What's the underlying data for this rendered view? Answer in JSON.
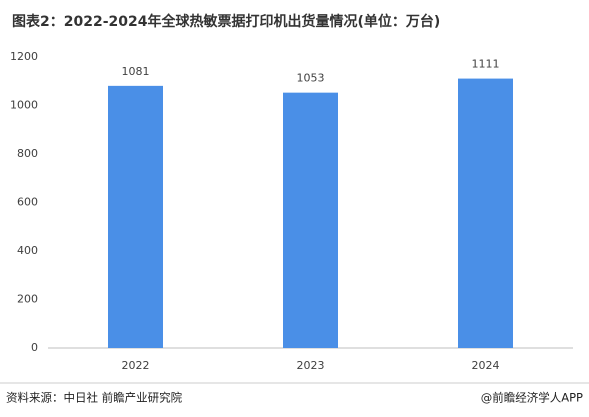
{
  "chart_data": {
    "type": "bar",
    "title": "图表2：2022-2024年全球热敏票据打印机出货量情况(单位：万台)",
    "categories": [
      "2022",
      "2023",
      "2024"
    ],
    "values": [
      1081,
      1053,
      1111
    ],
    "color": "#4a8fe7",
    "ylim": [
      0,
      1200
    ],
    "yticks": [
      0,
      200,
      400,
      600,
      800,
      1000,
      1200
    ],
    "grid": false,
    "source": "资料来源：中日社 前瞻产业研究院",
    "credit": "@前瞻经济学人APP"
  }
}
